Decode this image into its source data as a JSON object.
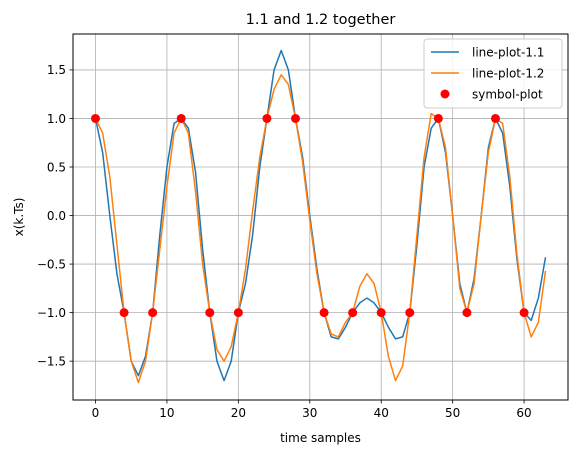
{
  "chart_data": {
    "type": "line",
    "title": "1.1 and 1.2 together",
    "xlabel": "time samples",
    "ylabel": "x(k.Ts)",
    "xlim": [
      -3.15,
      66.15
    ],
    "ylim": [
      -1.9,
      1.87
    ],
    "xticks": [
      0,
      10,
      20,
      30,
      40,
      50,
      60
    ],
    "yticks": [
      -1.5,
      -1.0,
      -0.5,
      0.0,
      0.5,
      1.0,
      1.5
    ],
    "xtick_labels": [
      "0",
      "10",
      "20",
      "30",
      "40",
      "50",
      "60"
    ],
    "ytick_labels": [
      "−1.5",
      "−1.0",
      "−0.5",
      "0.0",
      "0.5",
      "1.0",
      "1.5"
    ],
    "grid": true,
    "legend_position": "top-right",
    "series": [
      {
        "name": "line-plot-1.1",
        "kind": "line",
        "color": "#1f77b4",
        "x": [
          0,
          1,
          2,
          3,
          4,
          5,
          6,
          7,
          8,
          9,
          10,
          11,
          12,
          13,
          14,
          15,
          16,
          17,
          18,
          19,
          20,
          21,
          22,
          23,
          24,
          25,
          26,
          27,
          28,
          29,
          30,
          31,
          32,
          33,
          34,
          35,
          36,
          37,
          38,
          39,
          40,
          41,
          42,
          43,
          44,
          45,
          46,
          47,
          48,
          49,
          50,
          51,
          52,
          53,
          54,
          55,
          56,
          57,
          58,
          59,
          60,
          61,
          62,
          63
        ],
        "values": [
          1.0,
          0.65,
          0.0,
          -0.6,
          -1.0,
          -1.5,
          -1.65,
          -1.45,
          -1.0,
          -0.2,
          0.5,
          0.95,
          1.0,
          0.9,
          0.45,
          -0.35,
          -1.0,
          -1.5,
          -1.7,
          -1.5,
          -1.0,
          -0.7,
          -0.2,
          0.5,
          1.0,
          1.5,
          1.7,
          1.5,
          1.0,
          0.6,
          0.0,
          -0.55,
          -1.0,
          -1.25,
          -1.27,
          -1.15,
          -1.0,
          -0.9,
          -0.85,
          -0.9,
          -1.0,
          -1.15,
          -1.27,
          -1.25,
          -1.0,
          -0.3,
          0.5,
          0.9,
          1.0,
          0.65,
          0.0,
          -0.7,
          -1.0,
          -0.65,
          0.0,
          0.7,
          1.0,
          0.85,
          0.3,
          -0.45,
          -1.0,
          -1.08,
          -0.85,
          -0.43
        ]
      },
      {
        "name": "line-plot-1.2",
        "kind": "line",
        "color": "#ff7f0e",
        "x": [
          0,
          1,
          2,
          3,
          4,
          5,
          6,
          7,
          8,
          9,
          10,
          11,
          12,
          13,
          14,
          15,
          16,
          17,
          18,
          19,
          20,
          21,
          22,
          23,
          24,
          25,
          26,
          27,
          28,
          29,
          30,
          31,
          32,
          33,
          34,
          35,
          36,
          37,
          38,
          39,
          40,
          41,
          42,
          43,
          44,
          45,
          46,
          47,
          48,
          49,
          50,
          51,
          52,
          53,
          54,
          55,
          56,
          57,
          58,
          59,
          60,
          61,
          62,
          63
        ],
        "values": [
          1.0,
          0.85,
          0.4,
          -0.3,
          -1.0,
          -1.5,
          -1.72,
          -1.5,
          -1.0,
          -0.35,
          0.3,
          0.85,
          1.0,
          0.85,
          0.25,
          -0.5,
          -1.0,
          -1.38,
          -1.5,
          -1.35,
          -1.0,
          -0.55,
          0.05,
          0.6,
          1.0,
          1.3,
          1.45,
          1.35,
          1.0,
          0.55,
          -0.05,
          -0.6,
          -1.0,
          -1.22,
          -1.25,
          -1.1,
          -1.0,
          -0.73,
          -0.6,
          -0.7,
          -1.0,
          -1.45,
          -1.7,
          -1.55,
          -1.0,
          -0.2,
          0.6,
          1.05,
          1.0,
          0.7,
          0.0,
          -0.75,
          -1.0,
          -0.7,
          0.0,
          0.65,
          1.0,
          0.95,
          0.4,
          -0.4,
          -1.0,
          -1.25,
          -1.1,
          -0.57
        ]
      },
      {
        "name": "symbol-plot",
        "kind": "scatter",
        "color": "#ff0000",
        "x": [
          0,
          4,
          8,
          12,
          16,
          20,
          24,
          28,
          32,
          36,
          40,
          44,
          48,
          52,
          56,
          60
        ],
        "values": [
          1,
          -1,
          -1,
          1,
          -1,
          -1,
          1,
          1,
          -1,
          -1,
          -1,
          -1,
          1,
          -1,
          1,
          -1
        ]
      }
    ]
  }
}
